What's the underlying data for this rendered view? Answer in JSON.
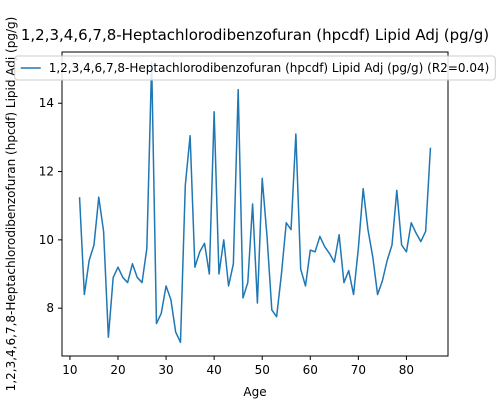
{
  "chart_data": {
    "type": "line",
    "title": "1,2,3,4,6,7,8-Heptachlorodibenzofuran (hpcdf) Lipid Adj (pg/g)",
    "xlabel": "Age",
    "ylabel": "1,2,3,4,6,7,8-Heptachlorodibenzofuran (hpcdf) Lipid Adj (pg/g)",
    "xlim": [
      8.35,
      88.65
    ],
    "ylim": [
      6.6,
      15.5
    ],
    "x_ticks": [
      10,
      20,
      30,
      40,
      50,
      60,
      70,
      80
    ],
    "y_ticks": [
      8,
      10,
      12,
      14
    ],
    "grid": false,
    "legend_position": "top-center",
    "series": [
      {
        "name": "1,2,3,4,6,7,8-Heptachlorodibenzofuran (hpcdf) Lipid Adj (pg/g) (R2=0.04)",
        "color": "#1f77b4",
        "x": [
          12,
          13,
          14,
          15,
          16,
          17,
          18,
          19,
          20,
          21,
          22,
          23,
          24,
          25,
          26,
          27,
          28,
          29,
          30,
          31,
          32,
          33,
          34,
          35,
          36,
          37,
          38,
          39,
          40,
          41,
          42,
          43,
          44,
          45,
          46,
          47,
          48,
          49,
          50,
          51,
          52,
          53,
          54,
          55,
          56,
          57,
          58,
          59,
          60,
          61,
          62,
          63,
          64,
          65,
          66,
          67,
          68,
          69,
          70,
          71,
          72,
          73,
          74,
          75,
          76,
          77,
          78,
          79,
          80,
          81,
          82,
          83,
          84,
          85
        ],
        "values": [
          11.25,
          8.4,
          9.4,
          9.85,
          11.25,
          10.25,
          7.15,
          8.9,
          9.2,
          8.9,
          8.75,
          9.3,
          8.9,
          8.75,
          9.75,
          15.2,
          7.55,
          7.85,
          8.65,
          8.25,
          7.3,
          7.0,
          11.6,
          13.05,
          9.2,
          9.65,
          9.9,
          9.0,
          13.75,
          9.0,
          10.0,
          8.65,
          9.3,
          14.4,
          8.3,
          8.75,
          11.05,
          8.15,
          11.8,
          10.1,
          7.95,
          7.75,
          9.0,
          10.5,
          10.3,
          13.1,
          9.15,
          8.65,
          9.7,
          9.65,
          10.1,
          9.8,
          9.6,
          9.35,
          10.15,
          8.75,
          9.1,
          8.4,
          9.75,
          11.5,
          10.3,
          9.5,
          8.4,
          8.8,
          9.4,
          9.85,
          11.45,
          9.85,
          9.65,
          10.5,
          10.2,
          9.95,
          10.25,
          12.7
        ]
      }
    ]
  }
}
